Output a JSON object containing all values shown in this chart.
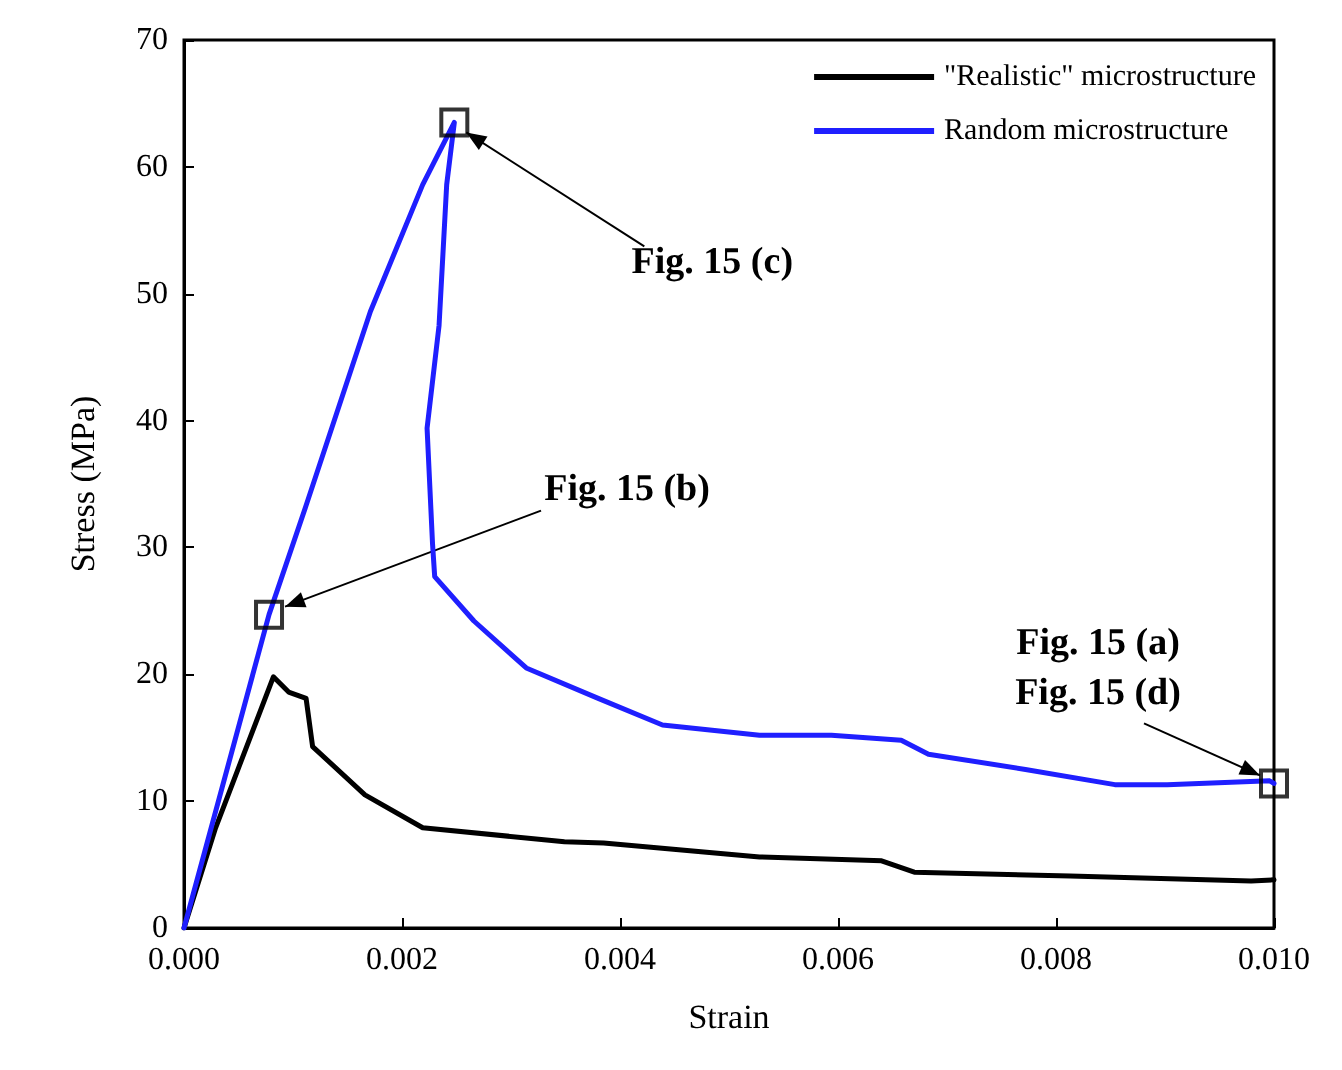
{
  "chart_data": {
    "type": "line",
    "xlabel": "Strain",
    "ylabel": "Stress (MPa)",
    "xlim": [
      0,
      0.01
    ],
    "xticks": [
      {
        "value": 0,
        "label": "0.000"
      },
      {
        "value": 0.002,
        "label": "0.002"
      },
      {
        "value": 0.004,
        "label": "0.004"
      },
      {
        "value": 0.006,
        "label": "0.006"
      },
      {
        "value": 0.008,
        "label": "0.008"
      },
      {
        "value": 0.01,
        "label": "0.010"
      }
    ],
    "ylim": [
      0,
      70
    ],
    "yticks": [
      0,
      10,
      20,
      30,
      40,
      50,
      60,
      70
    ],
    "grid": false,
    "legend": "top right",
    "line_style": "solid",
    "marker": "none",
    "series": [
      {
        "name": "\"Realistic\" microstructure",
        "color": "#000000",
        "x": [
          0,
          0.00029,
          0.00082,
          0.00096,
          0.00112,
          0.00118,
          0.00166,
          0.00219,
          0.00349,
          0.00385,
          0.00528,
          0.0064,
          0.0067,
          0.00813,
          0.00979,
          0.01
        ],
        "values": [
          0,
          7.9,
          19.8,
          18.6,
          18.1,
          14.3,
          10.5,
          7.9,
          6.8,
          6.7,
          5.6,
          5.3,
          4.4,
          4.1,
          3.7,
          3.8
        ]
      },
      {
        "name": "Random microstructure",
        "color": "#1f1fff",
        "x": [
          0,
          0.00078,
          0.00112,
          0.00171,
          0.00219,
          0.00248,
          0.00241,
          0.00234,
          0.00223,
          0.00228,
          0.0023,
          0.00266,
          0.00314,
          0.0038,
          0.00439,
          0.00528,
          0.00594,
          0.00658,
          0.00683,
          0.00772,
          0.00854,
          0.00902,
          0.00996,
          0.01
        ],
        "values": [
          0,
          24.7,
          33.3,
          48.6,
          58.6,
          63.5,
          58.6,
          47.5,
          39.4,
          30.3,
          27.7,
          24.2,
          20.5,
          18.1,
          16,
          15.2,
          15.2,
          14.8,
          13.7,
          12.5,
          11.3,
          11.3,
          11.6,
          11.4
        ]
      },
      {
        "type": "scatter",
        "marker": "square",
        "color": "#000000",
        "x": [
          0.00078,
          0.00248,
          0.01
        ],
        "values": [
          24.7,
          63.5,
          11.4
        ]
      }
    ],
    "annotations": [
      {
        "text": "Fig. 15 (b)",
        "x": 0.00078,
        "y": 24.7
      },
      {
        "text": "Fig. 15 (c)",
        "x": 0.00248,
        "y": 63.5
      },
      "Fig. 15 (a)",
      {
        "text": "Fig. 15 (d)",
        "x": 0.01,
        "y": 11.4
      }
    ]
  }
}
